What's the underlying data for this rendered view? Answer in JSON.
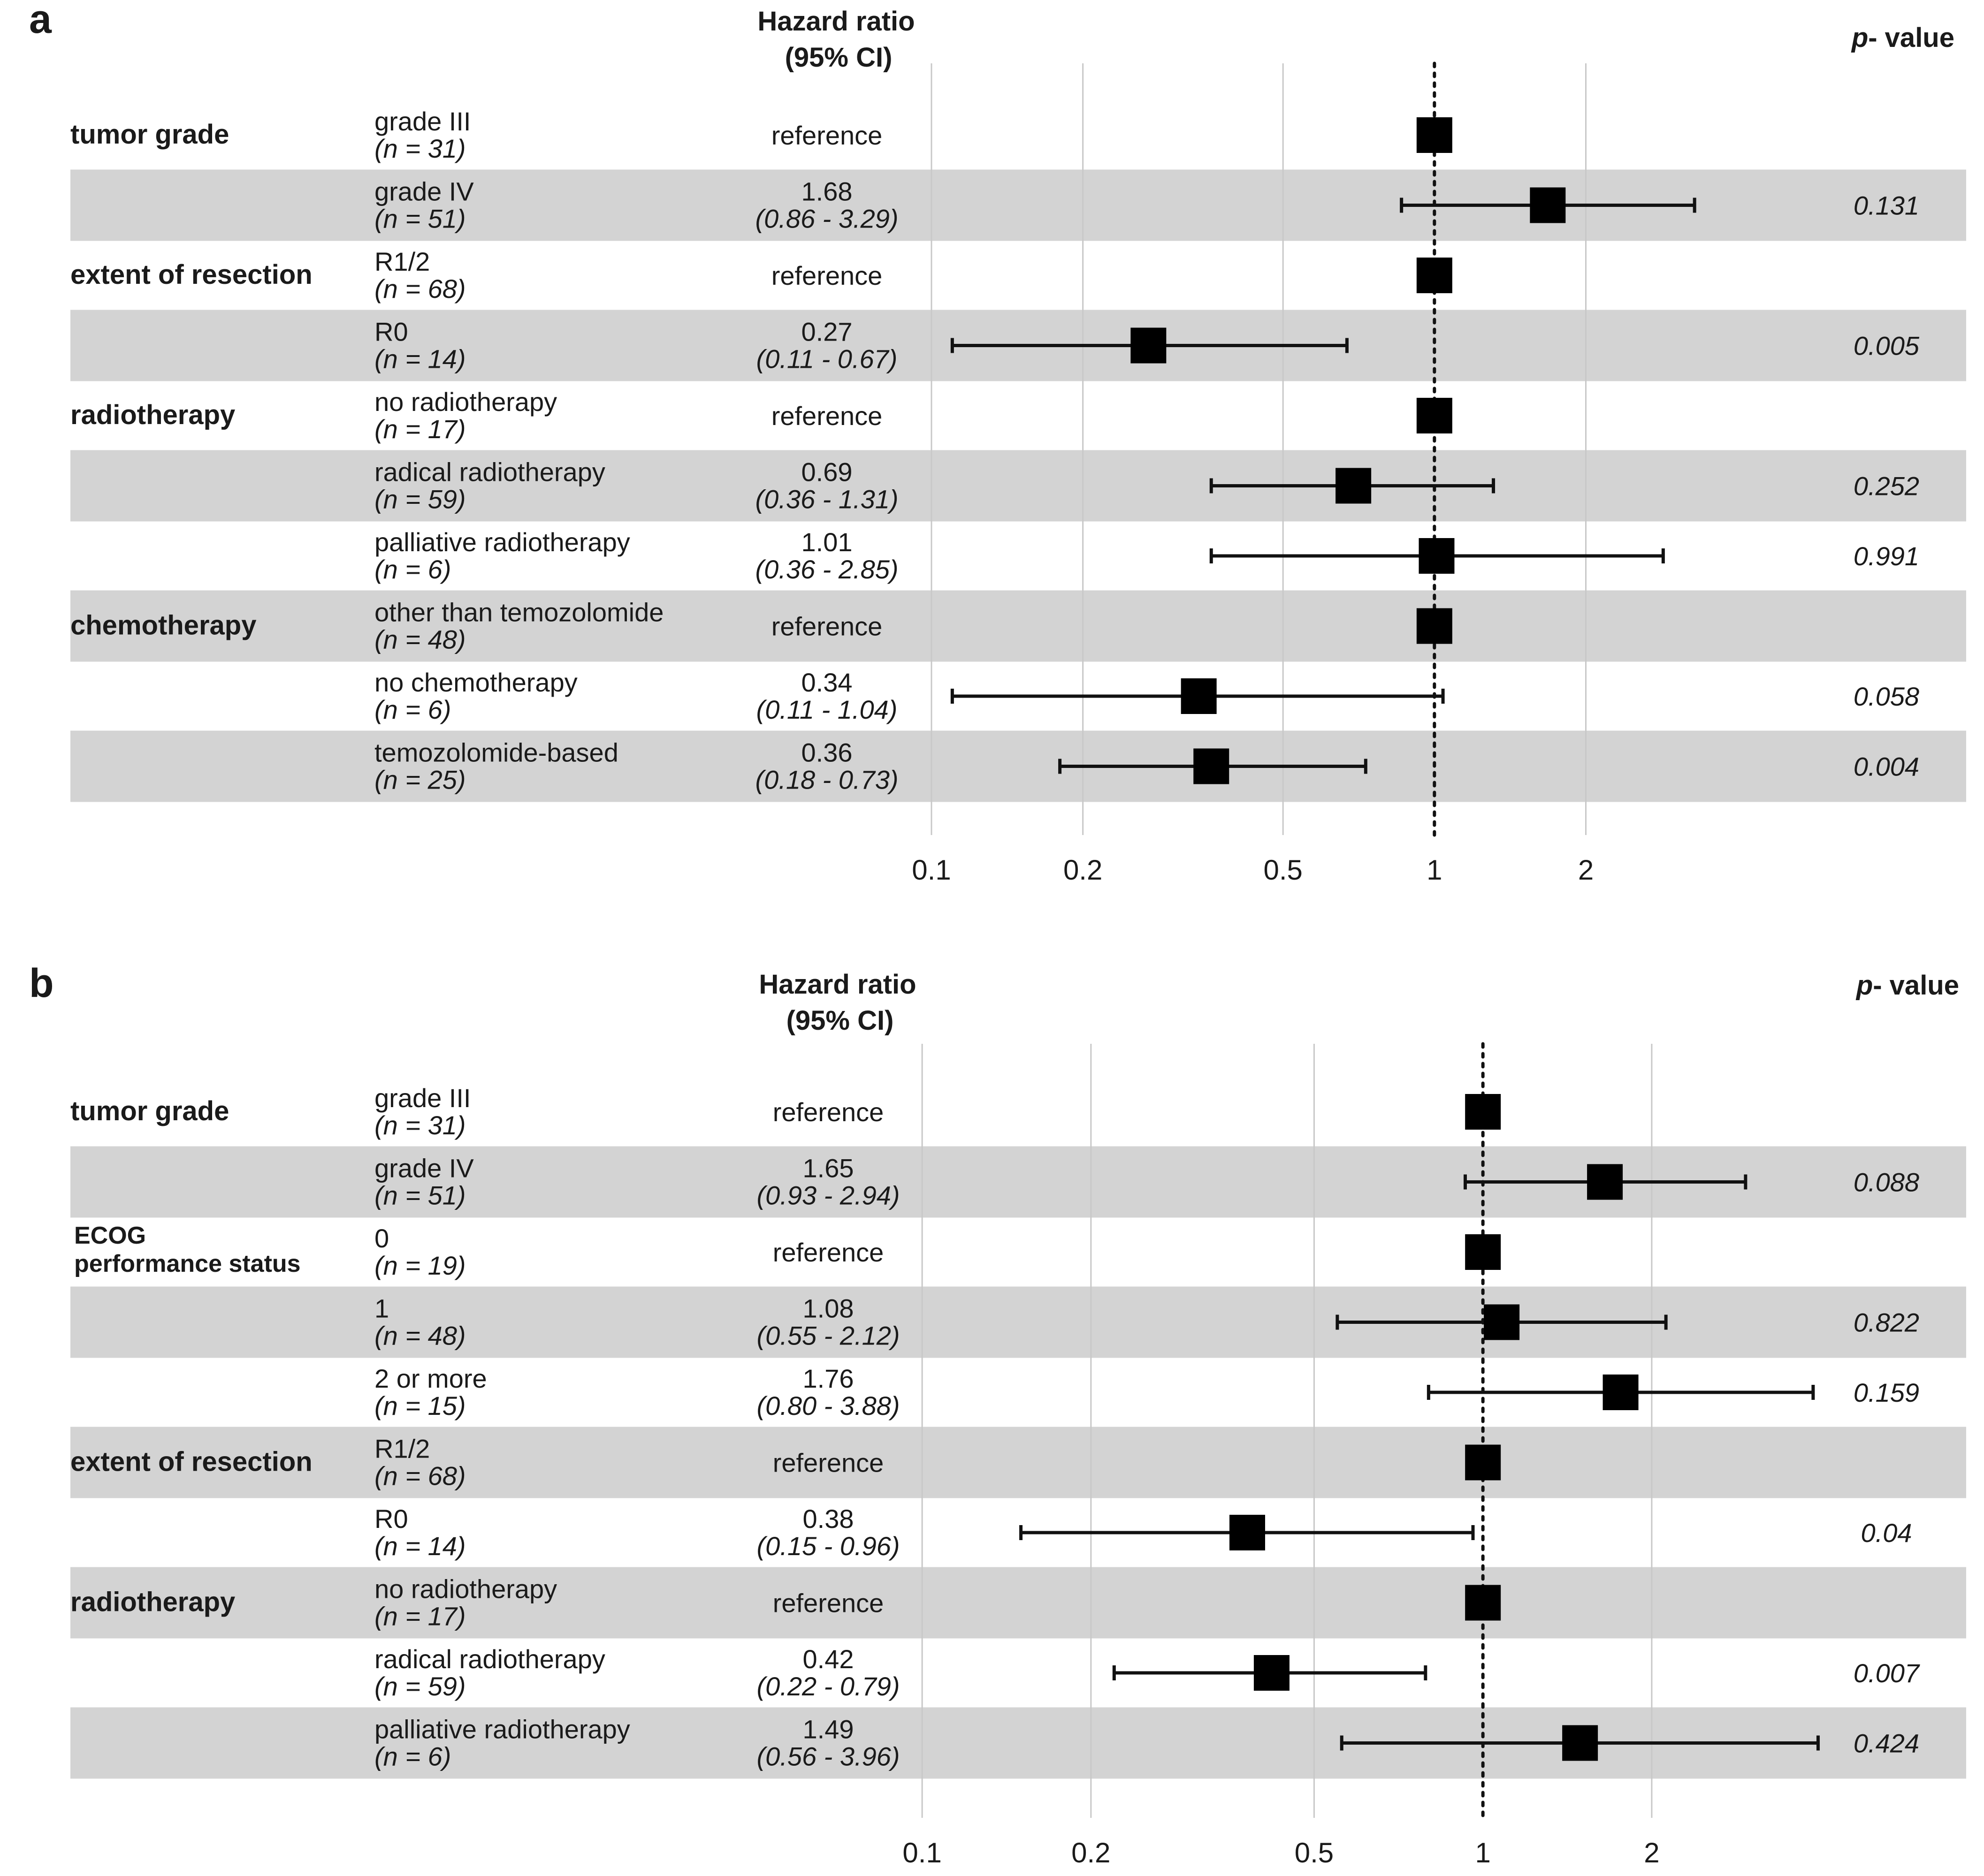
{
  "chart_data": [
    {
      "type": "forest",
      "panel": "a",
      "hr_header_line1": "Hazard ratio",
      "hr_header_line2": "(95% CI)",
      "p_header_prefix": "p",
      "p_header_suffix": "- value",
      "x_scale": "log",
      "xlim": [
        0.1,
        3.5
      ],
      "xticks": [
        0.1,
        0.2,
        0.5,
        1,
        2
      ],
      "xtick_labels": [
        "0.1",
        "0.2",
        "0.5",
        "1",
        "2"
      ],
      "reference_line": 1,
      "rows": [
        {
          "group": "tumor grade",
          "level": "grade III",
          "n": "(n = 31)",
          "hr_text": "reference",
          "ci_text": "",
          "p": "",
          "hr": 1,
          "lo": null,
          "hi": null,
          "shaded": false
        },
        {
          "group": "",
          "level": "grade IV",
          "n": "(n = 51)",
          "hr_text": "1.68",
          "ci_text": "(0.86 - 3.29)",
          "p": "0.131",
          "hr": 1.68,
          "lo": 0.86,
          "hi": 3.29,
          "shaded": true
        },
        {
          "group": "extent of resection",
          "level": "R1/2",
          "n": "(n = 68)",
          "hr_text": "reference",
          "ci_text": "",
          "p": "",
          "hr": 1,
          "lo": null,
          "hi": null,
          "shaded": false
        },
        {
          "group": "",
          "level": "R0",
          "n": "(n = 14)",
          "hr_text": "0.27",
          "ci_text": "(0.11 - 0.67)",
          "p": "0.005",
          "hr": 0.27,
          "lo": 0.11,
          "hi": 0.67,
          "shaded": true
        },
        {
          "group": "radiotherapy",
          "level": "no radiotherapy",
          "n": "(n = 17)",
          "hr_text": "reference",
          "ci_text": "",
          "p": "",
          "hr": 1,
          "lo": null,
          "hi": null,
          "shaded": false
        },
        {
          "group": "",
          "level": "radical radiotherapy",
          "n": "(n = 59)",
          "hr_text": "0.69",
          "ci_text": "(0.36 - 1.31)",
          "p": "0.252",
          "hr": 0.69,
          "lo": 0.36,
          "hi": 1.31,
          "shaded": true
        },
        {
          "group": "",
          "level": "palliative radiotherapy",
          "n": "(n = 6)",
          "hr_text": "1.01",
          "ci_text": "(0.36 - 2.85)",
          "p": "0.991",
          "hr": 1.01,
          "lo": 0.36,
          "hi": 2.85,
          "shaded": false
        },
        {
          "group": "chemotherapy",
          "level": "other than temozolomide",
          "n": "(n = 48)",
          "hr_text": "reference",
          "ci_text": "",
          "p": "",
          "hr": 1,
          "lo": null,
          "hi": null,
          "shaded": true
        },
        {
          "group": "",
          "level": "no chemotherapy",
          "n": "(n = 6)",
          "hr_text": "0.34",
          "ci_text": "(0.11 - 1.04)",
          "p": "0.058",
          "hr": 0.34,
          "lo": 0.11,
          "hi": 1.04,
          "shaded": false
        },
        {
          "group": "",
          "level": "temozolomide-based",
          "n": "(n = 25)",
          "hr_text": "0.36",
          "ci_text": "(0.18 - 0.73)",
          "p": "0.004",
          "hr": 0.36,
          "lo": 0.18,
          "hi": 0.73,
          "shaded": true
        }
      ]
    },
    {
      "type": "forest",
      "panel": "b",
      "hr_header_line1": "Hazard ratio",
      "hr_header_line2": "(95% CI)",
      "p_header_prefix": "p",
      "p_header_suffix": "- value",
      "x_scale": "log",
      "xlim": [
        0.07,
        4.2
      ],
      "xticks": [
        0.1,
        0.2,
        0.5,
        1,
        2
      ],
      "xtick_labels": [
        "0.1",
        "0.2",
        "0.5",
        "1",
        "2"
      ],
      "reference_line": 1,
      "rows": [
        {
          "group": "tumor grade",
          "group_line2": "",
          "level": "grade III",
          "n": "(n = 31)",
          "hr_text": "reference",
          "ci_text": "",
          "p": "",
          "hr": 1,
          "lo": null,
          "hi": null,
          "shaded": false
        },
        {
          "group": "",
          "group_line2": "",
          "level": "grade IV",
          "n": "(n = 51)",
          "hr_text": "1.65",
          "ci_text": "(0.93 - 2.94)",
          "p": "0.088",
          "hr": 1.65,
          "lo": 0.93,
          "hi": 2.94,
          "shaded": true
        },
        {
          "group": "ECOG",
          "group_line2": "performance status",
          "level": "0",
          "n": "(n = 19)",
          "hr_text": "reference",
          "ci_text": "",
          "p": "",
          "hr": 1,
          "lo": null,
          "hi": null,
          "shaded": false
        },
        {
          "group": "",
          "group_line2": "",
          "level": "1",
          "n": "(n = 48)",
          "hr_text": "1.08",
          "ci_text": "(0.55 - 2.12)",
          "p": "0.822",
          "hr": 1.08,
          "lo": 0.55,
          "hi": 2.12,
          "shaded": true
        },
        {
          "group": "",
          "group_line2": "",
          "level": "2 or more",
          "n": "(n = 15)",
          "hr_text": "1.76",
          "ci_text": "(0.80 - 3.88)",
          "p": "0.159",
          "hr": 1.76,
          "lo": 0.8,
          "hi": 3.88,
          "shaded": false
        },
        {
          "group": "extent of resection",
          "group_line2": "",
          "level": "R1/2",
          "n": "(n = 68)",
          "hr_text": "reference",
          "ci_text": "",
          "p": "",
          "hr": 1,
          "lo": null,
          "hi": null,
          "shaded": true
        },
        {
          "group": "",
          "group_line2": "",
          "level": "R0",
          "n": "(n = 14)",
          "hr_text": "0.38",
          "ci_text": "(0.15 - 0.96)",
          "p": "0.04",
          "hr": 0.38,
          "lo": 0.15,
          "hi": 0.96,
          "shaded": false
        },
        {
          "group": "radiotherapy",
          "group_line2": "",
          "level": "no radiotherapy",
          "n": "(n = 17)",
          "hr_text": "reference",
          "ci_text": "",
          "p": "",
          "hr": 1,
          "lo": null,
          "hi": null,
          "shaded": true
        },
        {
          "group": "",
          "group_line2": "",
          "level": "radical radiotherapy",
          "n": "(n = 59)",
          "hr_text": "0.42",
          "ci_text": "(0.22 - 0.79)",
          "p": "0.007",
          "hr": 0.42,
          "lo": 0.22,
          "hi": 0.79,
          "shaded": false
        },
        {
          "group": "",
          "group_line2": "",
          "level": "palliative radiotherapy",
          "n": "(n = 6)",
          "hr_text": "1.49",
          "ci_text": "(0.56 - 3.96)",
          "p": "0.424",
          "hr": 1.49,
          "lo": 0.56,
          "hi": 3.96,
          "shaded": true
        }
      ]
    }
  ]
}
